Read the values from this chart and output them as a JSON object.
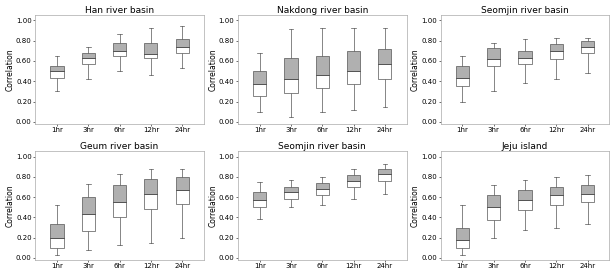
{
  "panels": [
    {
      "title": "Han river basin",
      "categories": [
        "1hr",
        "3hr",
        "6hr",
        "12hr",
        "24hr"
      ],
      "boxes": [
        {
          "min": 0.3,
          "q1": 0.43,
          "median": 0.5,
          "q3": 0.55,
          "max": 0.65
        },
        {
          "min": 0.42,
          "q1": 0.57,
          "median": 0.63,
          "q3": 0.68,
          "max": 0.74
        },
        {
          "min": 0.5,
          "q1": 0.65,
          "median": 0.7,
          "q3": 0.78,
          "max": 0.87
        },
        {
          "min": 0.46,
          "q1": 0.63,
          "median": 0.67,
          "q3": 0.78,
          "max": 0.93
        },
        {
          "min": 0.53,
          "q1": 0.68,
          "median": 0.74,
          "q3": 0.82,
          "max": 0.94
        }
      ]
    },
    {
      "title": "Nakdong river basin",
      "categories": [
        "1hr",
        "3hr",
        "6hr",
        "12hr",
        "24hr"
      ],
      "boxes": [
        {
          "min": 0.1,
          "q1": 0.25,
          "median": 0.37,
          "q3": 0.5,
          "max": 0.68
        },
        {
          "min": 0.05,
          "q1": 0.28,
          "median": 0.42,
          "q3": 0.63,
          "max": 0.92
        },
        {
          "min": 0.1,
          "q1": 0.33,
          "median": 0.46,
          "q3": 0.65,
          "max": 0.93
        },
        {
          "min": 0.12,
          "q1": 0.37,
          "median": 0.5,
          "q3": 0.7,
          "max": 0.93
        },
        {
          "min": 0.15,
          "q1": 0.42,
          "median": 0.57,
          "q3": 0.72,
          "max": 0.93
        }
      ]
    },
    {
      "title": "Seomjin river basin",
      "categories": [
        "1hr",
        "3hr",
        "6hr",
        "12hr",
        "24hr"
      ],
      "boxes": [
        {
          "min": 0.2,
          "q1": 0.35,
          "median": 0.43,
          "q3": 0.55,
          "max": 0.65
        },
        {
          "min": 0.3,
          "q1": 0.55,
          "median": 0.62,
          "q3": 0.73,
          "max": 0.78
        },
        {
          "min": 0.38,
          "q1": 0.57,
          "median": 0.63,
          "q3": 0.7,
          "max": 0.82
        },
        {
          "min": 0.42,
          "q1": 0.62,
          "median": 0.7,
          "q3": 0.77,
          "max": 0.83
        },
        {
          "min": 0.48,
          "q1": 0.68,
          "median": 0.74,
          "q3": 0.8,
          "max": 0.83
        }
      ]
    },
    {
      "title": "Geum river basin",
      "categories": [
        "1hr",
        "3hr",
        "6hr",
        "12hr",
        "24hr"
      ],
      "boxes": [
        {
          "min": 0.03,
          "q1": 0.1,
          "median": 0.2,
          "q3": 0.33,
          "max": 0.52
        },
        {
          "min": 0.08,
          "q1": 0.27,
          "median": 0.43,
          "q3": 0.6,
          "max": 0.73
        },
        {
          "min": 0.13,
          "q1": 0.4,
          "median": 0.55,
          "q3": 0.72,
          "max": 0.83
        },
        {
          "min": 0.15,
          "q1": 0.48,
          "median": 0.63,
          "q3": 0.78,
          "max": 0.88
        },
        {
          "min": 0.2,
          "q1": 0.53,
          "median": 0.67,
          "q3": 0.8,
          "max": 0.88
        }
      ]
    },
    {
      "title": "Seomjin river basin",
      "categories": [
        "1hr",
        "3hr",
        "6hr",
        "12hr",
        "24hr"
      ],
      "boxes": [
        {
          "min": 0.38,
          "q1": 0.5,
          "median": 0.57,
          "q3": 0.65,
          "max": 0.75
        },
        {
          "min": 0.5,
          "q1": 0.58,
          "median": 0.65,
          "q3": 0.7,
          "max": 0.77
        },
        {
          "min": 0.52,
          "q1": 0.62,
          "median": 0.68,
          "q3": 0.74,
          "max": 0.8
        },
        {
          "min": 0.58,
          "q1": 0.7,
          "median": 0.76,
          "q3": 0.82,
          "max": 0.88
        },
        {
          "min": 0.63,
          "q1": 0.76,
          "median": 0.83,
          "q3": 0.88,
          "max": 0.93
        }
      ]
    },
    {
      "title": "Jeju island",
      "categories": [
        "1hr",
        "3hr",
        "6hr",
        "12hr",
        "24hr"
      ],
      "boxes": [
        {
          "min": 0.03,
          "q1": 0.1,
          "median": 0.18,
          "q3": 0.3,
          "max": 0.52
        },
        {
          "min": 0.2,
          "q1": 0.37,
          "median": 0.5,
          "q3": 0.62,
          "max": 0.72
        },
        {
          "min": 0.28,
          "q1": 0.47,
          "median": 0.57,
          "q3": 0.67,
          "max": 0.77
        },
        {
          "min": 0.3,
          "q1": 0.52,
          "median": 0.62,
          "q3": 0.7,
          "max": 0.8
        },
        {
          "min": 0.33,
          "q1": 0.55,
          "median": 0.63,
          "q3": 0.72,
          "max": 0.82
        }
      ]
    }
  ],
  "box_facecolor_lower": "#ffffff",
  "box_facecolor_upper": "#b0b0b0",
  "box_edgecolor": "#555555",
  "whisker_color": "#555555",
  "median_color": "#555555",
  "ylabel": "Correlation",
  "ylim": [
    0.0,
    1.0
  ],
  "yticks": [
    0.0,
    0.2,
    0.4,
    0.6,
    0.8,
    1.0
  ],
  "title_fontsize": 6.5,
  "tick_fontsize": 5,
  "label_fontsize": 5.5,
  "background_color": "#ffffff"
}
